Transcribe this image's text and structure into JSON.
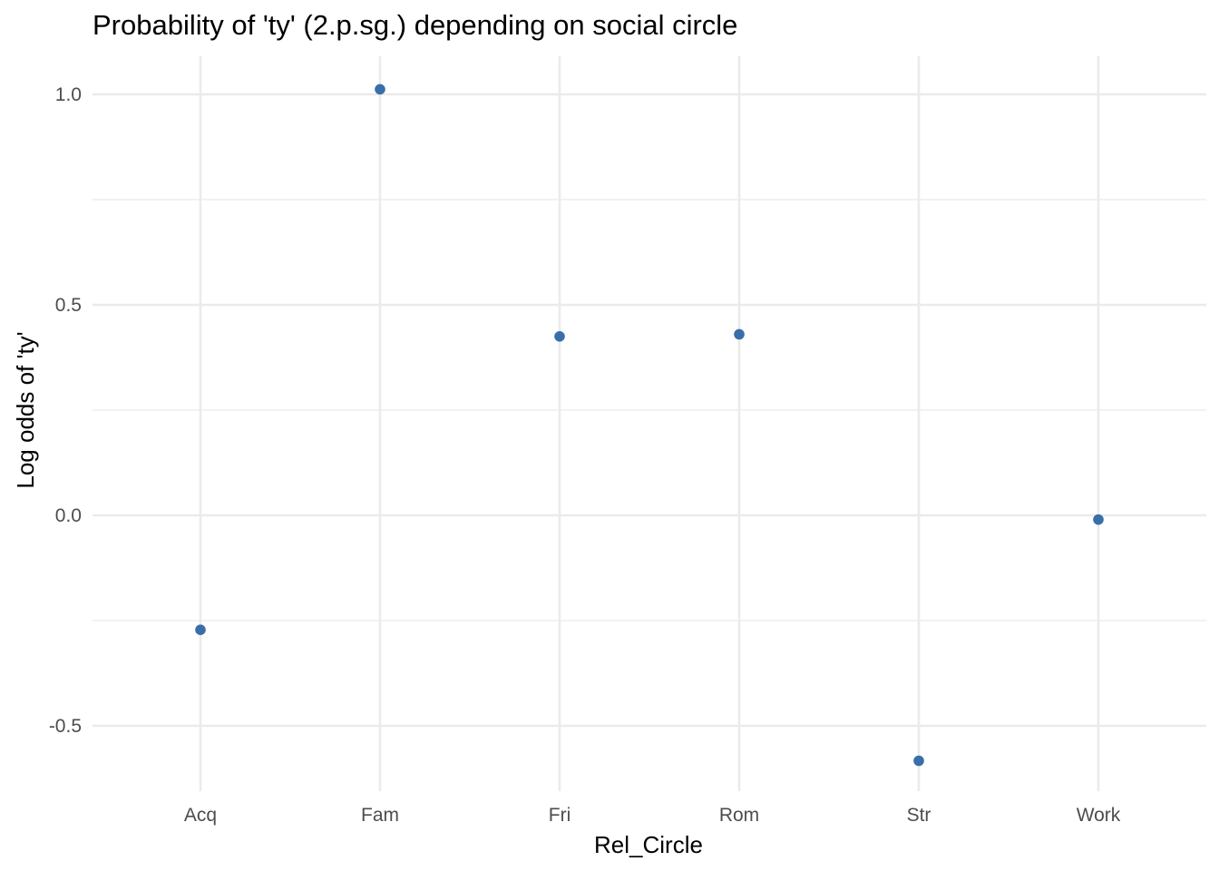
{
  "chart_data": {
    "type": "scatter",
    "title": "Probability of 'ty' (2.p.sg.) depending on social circle",
    "xlabel": "Rel_Circle",
    "ylabel": "Log odds of 'ty'",
    "categories": [
      "Acq",
      "Fam",
      "Fri",
      "Rom",
      "Str",
      "Work"
    ],
    "values": [
      -0.272,
      1.012,
      0.425,
      0.43,
      -0.583,
      -0.01
    ],
    "ylim": [
      -0.64,
      1.1
    ],
    "y_ticks": [
      -0.5,
      0.0,
      0.5,
      1.0
    ],
    "y_tick_labels": [
      "-0.5",
      "0.0",
      "0.5",
      "1.0"
    ],
    "y_minor_ticks": [
      -0.25,
      0.25,
      0.75
    ],
    "point_color": "#3a6ea8",
    "grid": true,
    "legend": "none"
  }
}
